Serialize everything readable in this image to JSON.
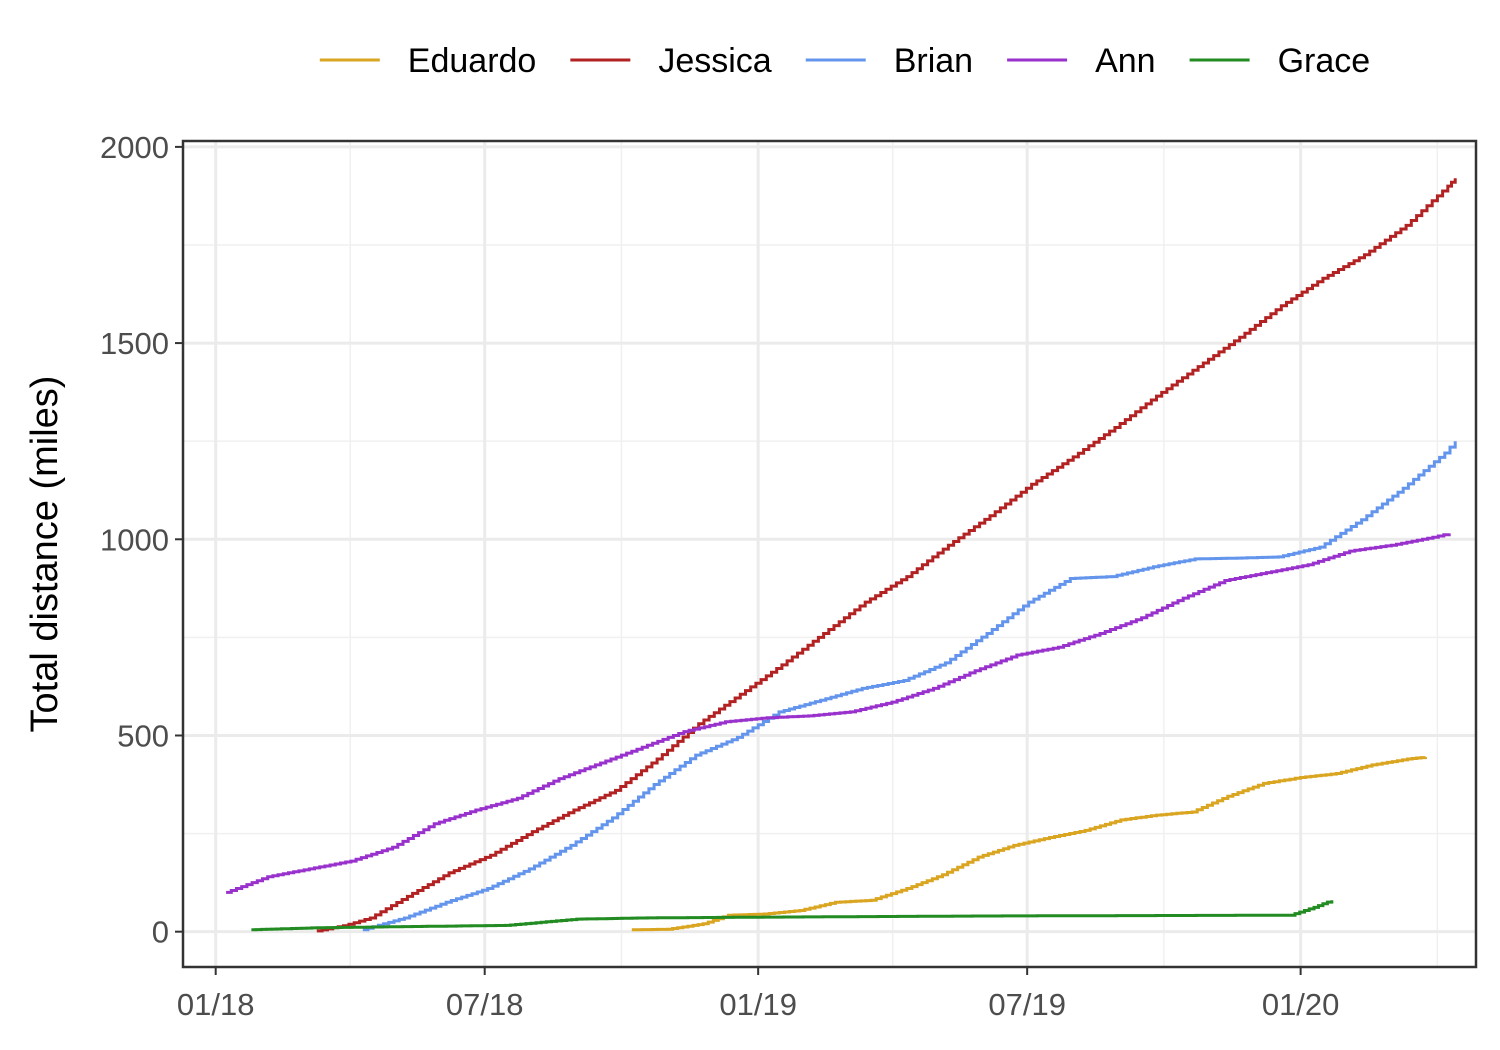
{
  "chart_data": {
    "type": "line",
    "title": "",
    "xlabel": "",
    "ylabel": "Total distance (miles)",
    "xlim": [
      "2017-12-10",
      "2020-04-28"
    ],
    "ylim": [
      -90,
      2015
    ],
    "x_ticks": [
      {
        "date": "2018-01-01",
        "label": "01/18"
      },
      {
        "date": "2018-07-01",
        "label": "07/18"
      },
      {
        "date": "2019-01-01",
        "label": "01/19"
      },
      {
        "date": "2019-07-01",
        "label": "07/19"
      },
      {
        "date": "2020-01-01",
        "label": "01/20"
      }
    ],
    "y_ticks": [
      0,
      500,
      1000,
      1500,
      2000
    ],
    "grid": true,
    "legend_position": "top",
    "series": [
      {
        "name": "Eduardo",
        "color": "#DAA520",
        "points": [
          [
            "2018-10-08",
            5
          ],
          [
            "2018-11-01",
            6
          ],
          [
            "2018-11-25",
            20
          ],
          [
            "2018-12-12",
            42
          ],
          [
            "2019-01-05",
            45
          ],
          [
            "2019-01-29",
            54
          ],
          [
            "2019-02-22",
            75
          ],
          [
            "2019-03-18",
            80
          ],
          [
            "2019-04-11",
            110
          ],
          [
            "2019-05-05",
            145
          ],
          [
            "2019-05-29",
            190
          ],
          [
            "2019-06-22",
            220
          ],
          [
            "2019-07-16",
            240
          ],
          [
            "2019-08-09",
            258
          ],
          [
            "2019-09-02",
            285
          ],
          [
            "2019-09-26",
            297
          ],
          [
            "2019-10-20",
            305
          ],
          [
            "2019-11-13",
            345
          ],
          [
            "2019-12-07",
            378
          ],
          [
            "2020-01-01",
            393
          ],
          [
            "2020-01-25",
            403
          ],
          [
            "2020-02-18",
            425
          ],
          [
            "2020-03-13",
            440
          ],
          [
            "2020-03-25",
            445
          ]
        ]
      },
      {
        "name": "Jessica",
        "color": "#B22222",
        "points": [
          [
            "2018-03-10",
            2
          ],
          [
            "2018-03-28",
            15
          ],
          [
            "2018-04-15",
            35
          ],
          [
            "2018-05-10",
            90
          ],
          [
            "2018-06-07",
            150
          ],
          [
            "2018-07-05",
            195
          ],
          [
            "2018-08-02",
            255
          ],
          [
            "2018-08-30",
            310
          ],
          [
            "2018-09-27",
            360
          ],
          [
            "2018-10-25",
            440
          ],
          [
            "2018-11-22",
            530
          ],
          [
            "2018-12-20",
            605
          ],
          [
            "2019-01-17",
            680
          ],
          [
            "2019-02-14",
            760
          ],
          [
            "2019-03-14",
            840
          ],
          [
            "2019-04-11",
            905
          ],
          [
            "2019-05-09",
            985
          ],
          [
            "2019-06-06",
            1060
          ],
          [
            "2019-07-04",
            1140
          ],
          [
            "2019-08-01",
            1210
          ],
          [
            "2019-08-29",
            1285
          ],
          [
            "2019-09-26",
            1365
          ],
          [
            "2019-10-24",
            1440
          ],
          [
            "2019-11-21",
            1515
          ],
          [
            "2019-12-19",
            1595
          ],
          [
            "2020-01-16",
            1665
          ],
          [
            "2020-02-13",
            1725
          ],
          [
            "2020-03-12",
            1800
          ],
          [
            "2020-04-09",
            1900
          ],
          [
            "2020-04-14",
            1920
          ]
        ]
      },
      {
        "name": "Brian",
        "color": "#6495ED",
        "points": [
          [
            "2018-04-10",
            5
          ],
          [
            "2018-05-08",
            35
          ],
          [
            "2018-06-05",
            75
          ],
          [
            "2018-07-03",
            110
          ],
          [
            "2018-07-31",
            160
          ],
          [
            "2018-08-28",
            220
          ],
          [
            "2018-09-25",
            290
          ],
          [
            "2018-10-23",
            375
          ],
          [
            "2018-11-20",
            450
          ],
          [
            "2018-12-18",
            495
          ],
          [
            "2019-01-15",
            560
          ],
          [
            "2019-02-12",
            590
          ],
          [
            "2019-03-12",
            620
          ],
          [
            "2019-04-09",
            640
          ],
          [
            "2019-05-07",
            685
          ],
          [
            "2019-06-04",
            760
          ],
          [
            "2019-07-02",
            840
          ],
          [
            "2019-07-30",
            900
          ],
          [
            "2019-08-27",
            905
          ],
          [
            "2019-09-24",
            930
          ],
          [
            "2019-10-22",
            950
          ],
          [
            "2019-11-19",
            952
          ],
          [
            "2019-12-17",
            955
          ],
          [
            "2020-01-14",
            980
          ],
          [
            "2020-02-11",
            1050
          ],
          [
            "2020-03-10",
            1130
          ],
          [
            "2020-04-07",
            1220
          ],
          [
            "2020-04-14",
            1250
          ]
        ]
      },
      {
        "name": "Ann",
        "color": "#9932CC",
        "points": [
          [
            "2018-01-08",
            100
          ],
          [
            "2018-02-05",
            140
          ],
          [
            "2018-03-05",
            160
          ],
          [
            "2018-04-02",
            180
          ],
          [
            "2018-04-30",
            215
          ],
          [
            "2018-05-28",
            275
          ],
          [
            "2018-06-25",
            310
          ],
          [
            "2018-07-23",
            340
          ],
          [
            "2018-08-20",
            390
          ],
          [
            "2018-09-17",
            430
          ],
          [
            "2018-10-15",
            470
          ],
          [
            "2018-11-12",
            510
          ],
          [
            "2018-12-10",
            535
          ],
          [
            "2019-01-07",
            545
          ],
          [
            "2019-02-04",
            550
          ],
          [
            "2019-03-04",
            560
          ],
          [
            "2019-04-01",
            585
          ],
          [
            "2019-04-29",
            620
          ],
          [
            "2019-05-27",
            665
          ],
          [
            "2019-06-24",
            705
          ],
          [
            "2019-07-22",
            725
          ],
          [
            "2019-08-19",
            760
          ],
          [
            "2019-09-16",
            800
          ],
          [
            "2019-10-14",
            850
          ],
          [
            "2019-11-11",
            895
          ],
          [
            "2019-12-09",
            915
          ],
          [
            "2020-01-06",
            935
          ],
          [
            "2020-02-03",
            970
          ],
          [
            "2020-03-02",
            985
          ],
          [
            "2020-03-30",
            1005
          ],
          [
            "2020-04-10",
            1015
          ]
        ]
      },
      {
        "name": "Grace",
        "color": "#228B22",
        "points": [
          [
            "2018-01-25",
            5
          ],
          [
            "2018-03-10",
            10
          ],
          [
            "2018-05-10",
            13
          ],
          [
            "2018-07-15",
            16
          ],
          [
            "2018-09-01",
            32
          ],
          [
            "2018-10-15",
            35
          ],
          [
            "2019-01-01",
            37
          ],
          [
            "2019-06-01",
            40
          ],
          [
            "2019-12-25",
            42
          ],
          [
            "2020-01-10",
            62
          ],
          [
            "2020-01-22",
            80
          ]
        ]
      }
    ]
  }
}
